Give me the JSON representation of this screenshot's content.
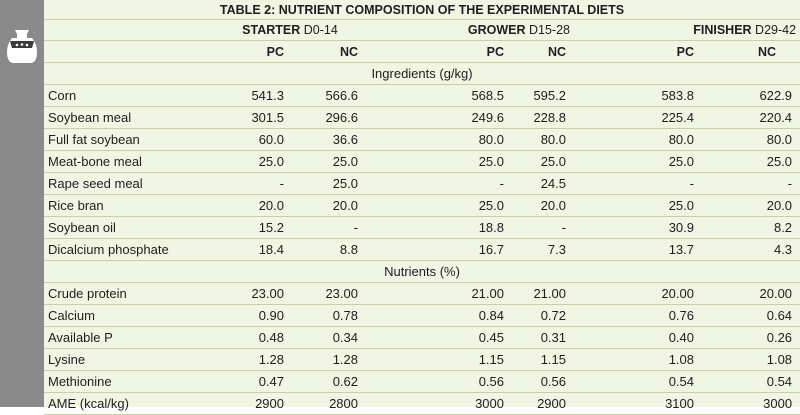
{
  "title": "TABLE 2: NUTRIENT COMPOSITION OF THE EXPERIMENTAL DIETS",
  "phases": [
    {
      "name": "STARTER",
      "days": "D0-14"
    },
    {
      "name": "GROWER",
      "days": "D15-28"
    },
    {
      "name": "FINISHER",
      "days": "D29-42"
    }
  ],
  "subheaders": [
    "PC",
    "NC",
    "PC",
    "NC",
    "PC",
    "NC"
  ],
  "sections": [
    {
      "title": "Ingredients (g/kg)",
      "rows": [
        {
          "label": "Corn",
          "values": [
            "541.3",
            "566.6",
            "568.5",
            "595.2",
            "583.8",
            "622.9"
          ]
        },
        {
          "label": "Soybean meal",
          "values": [
            "301.5",
            "296.6",
            "249.6",
            "228.8",
            "225.4",
            "220.4"
          ]
        },
        {
          "label": "Full fat soybean",
          "values": [
            "60.0",
            "36.6",
            "80.0",
            "80.0",
            "80.0",
            "80.0"
          ]
        },
        {
          "label": "Meat-bone meal",
          "values": [
            "25.0",
            "25.0",
            "25.0",
            "25.0",
            "25.0",
            "25.0"
          ]
        },
        {
          "label": "Rape seed meal",
          "values": [
            "-",
            "25.0",
            "-",
            "24.5",
            "-",
            "-"
          ]
        },
        {
          "label": "Rice bran",
          "values": [
            "20.0",
            "20.0",
            "25.0",
            "20.0",
            "25.0",
            "20.0"
          ]
        },
        {
          "label": "Soybean oil",
          "values": [
            "15.2",
            "-",
            "18.8",
            "-",
            "30.9",
            "8.2"
          ]
        },
        {
          "label": "Dicalcium phosphate",
          "values": [
            "18.4",
            "8.8",
            "16.7",
            "7.3",
            "13.7",
            "4.3"
          ]
        }
      ]
    },
    {
      "title": "Nutrients (%)",
      "rows": [
        {
          "label": "Crude protein",
          "values": [
            "23.00",
            "23.00",
            "21.00",
            "21.00",
            "20.00",
            "20.00"
          ]
        },
        {
          "label": "Calcium",
          "values": [
            "0.90",
            "0.78",
            "0.84",
            "0.72",
            "0.76",
            "0.64"
          ]
        },
        {
          "label": "Available P",
          "values": [
            "0.48",
            "0.34",
            "0.45",
            "0.31",
            "0.40",
            "0.26"
          ]
        },
        {
          "label": "Lysine",
          "values": [
            "1.28",
            "1.28",
            "1.15",
            "1.15",
            "1.08",
            "1.08"
          ]
        },
        {
          "label": "Methionine",
          "values": [
            "0.47",
            "0.62",
            "0.56",
            "0.56",
            "0.54",
            "0.54"
          ]
        },
        {
          "label": "AME (kcal/kg)",
          "values": [
            "2900",
            "2800",
            "3000",
            "2900",
            "3100",
            "3000"
          ]
        }
      ]
    }
  ],
  "colors": {
    "sidebar": "#8a8a8a",
    "table_bg": "#f1f5e3",
    "rule": "#c9cda8"
  },
  "icons": {
    "sidebar_icon": "feed-sack-icon"
  }
}
